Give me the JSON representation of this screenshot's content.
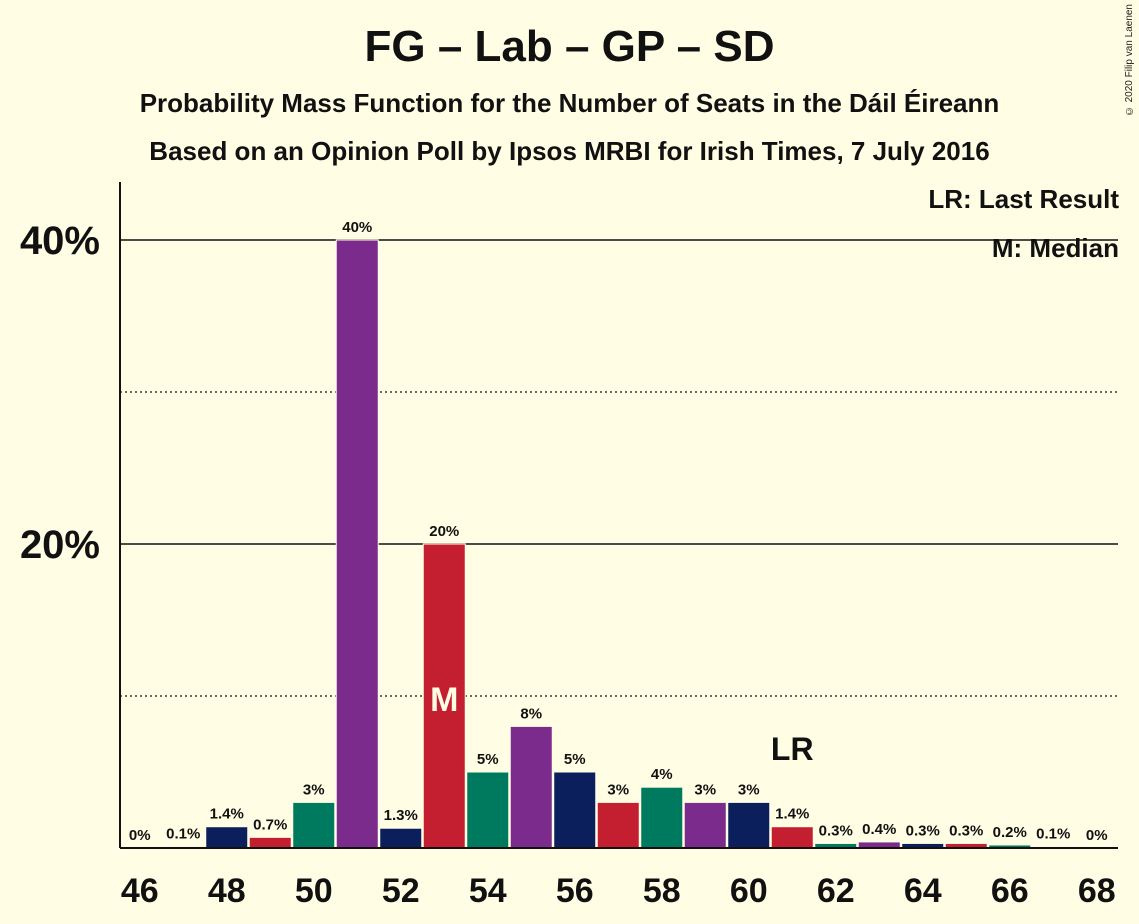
{
  "header": {
    "title": "FG – Lab – GP – SD",
    "subtitle1": "Probability Mass Function for the Number of Seats in the Dáil Éireann",
    "subtitle2": "Based on an Opinion Poll by Ipsos MRBI for Irish Times, 7 July 2016",
    "copyright": "© 2020 Filip van Laenen"
  },
  "legend": {
    "last_result": "LR: Last Result",
    "median": "M: Median"
  },
  "colors": {
    "background": "#fffde3",
    "FG": "#0a1f5c",
    "Lab": "#c41f30",
    "GP": "#007a5e",
    "SD": "#7b2b8c"
  },
  "chart_data": {
    "type": "bar",
    "x": [
      46,
      47,
      48,
      49,
      50,
      51,
      52,
      53,
      54,
      55,
      56,
      57,
      58,
      59,
      60,
      61,
      62,
      63,
      64,
      65,
      66,
      67,
      68
    ],
    "values": [
      0,
      0.1,
      1.4,
      0.7,
      3,
      40,
      1.3,
      20,
      5,
      8,
      5,
      3,
      4,
      3,
      3,
      1.4,
      0.3,
      0.4,
      0.3,
      0.3,
      0.2,
      0.1,
      0
    ],
    "labels": [
      "0%",
      "0.1%",
      "1.4%",
      "0.7%",
      "3%",
      "40%",
      "1.3%",
      "20%",
      "5%",
      "8%",
      "5%",
      "3%",
      "4%",
      "3%",
      "3%",
      "1.4%",
      "0.3%",
      "0.4%",
      "0.3%",
      "0.3%",
      "0.2%",
      "0.1%",
      "0%"
    ],
    "bar_parties": [
      "FG",
      "FG",
      "FG",
      "Lab",
      "GP",
      "SD",
      "FG",
      "Lab",
      "GP",
      "SD",
      "FG",
      "Lab",
      "GP",
      "SD",
      "FG",
      "Lab",
      "GP",
      "SD",
      "FG",
      "Lab",
      "GP",
      "SD",
      "FG"
    ],
    "xticks": [
      46,
      48,
      50,
      52,
      54,
      56,
      58,
      60,
      62,
      64,
      66,
      68
    ],
    "yticks": [
      {
        "value": 20,
        "label": "20%"
      },
      {
        "value": 40,
        "label": "40%"
      }
    ],
    "dotted_gridlines": [
      10,
      30
    ],
    "ylim": [
      0,
      44
    ],
    "median": {
      "x": 53,
      "label": "M"
    },
    "last_result": {
      "x": 61,
      "label": "LR"
    }
  }
}
